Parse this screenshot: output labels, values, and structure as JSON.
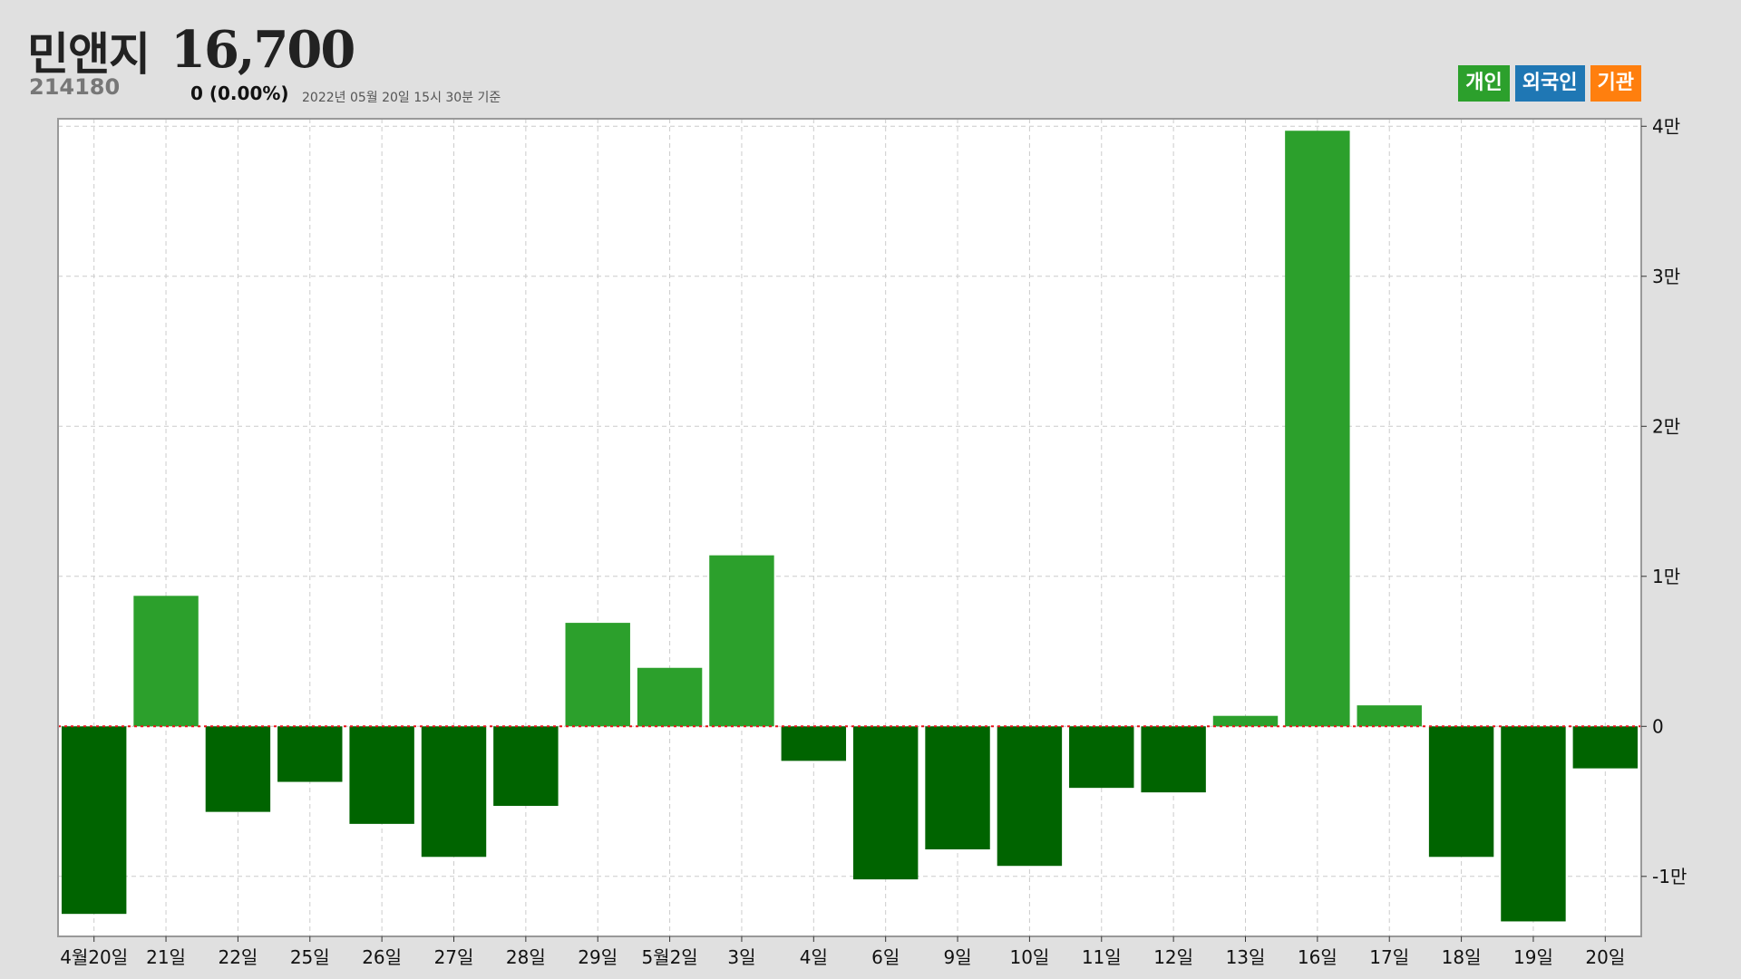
{
  "header": {
    "name": "민앤지",
    "price": "16,700",
    "code": "214180",
    "change": "0 (0.00%)",
    "timestamp": "2022년 05월 20일 15시 30분 기준"
  },
  "legend": [
    {
      "label": "개인",
      "color": "#2ca02c"
    },
    {
      "label": "외국인",
      "color": "#1f77b4"
    },
    {
      "label": "기관",
      "color": "#ff7f0e"
    }
  ],
  "chart_data": {
    "type": "bar",
    "title": "",
    "xlabel": "",
    "ylabel": "",
    "categories": [
      "4월20일",
      "21일",
      "22일",
      "25일",
      "26일",
      "27일",
      "28일",
      "29일",
      "5월2일",
      "3일",
      "4일",
      "6일",
      "9일",
      "10일",
      "11일",
      "12일",
      "13일",
      "16일",
      "17일",
      "18일",
      "19일",
      "20일"
    ],
    "series": [
      {
        "name": "개인",
        "values": [
          -12500,
          8700,
          -5700,
          -3700,
          -6500,
          -8700,
          -5300,
          6900,
          3900,
          11400,
          -2300,
          -10200,
          -8200,
          -9300,
          -4100,
          -4400,
          700,
          39700,
          1400,
          -8700,
          -13000,
          -2800
        ]
      }
    ],
    "ylim": [
      -14000,
      40500
    ],
    "yticks": [
      -10000,
      0,
      10000,
      20000,
      30000,
      40000
    ],
    "ytick_labels": [
      "-1만",
      "0",
      "1만",
      "2만",
      "3만",
      "4만"
    ],
    "grid": true,
    "legend_position": "top-right",
    "colors": {
      "positive": "#2ca02c",
      "negative": "#006400",
      "zero_line": "#e8141b",
      "grid": "#cccccc",
      "plot_bg": "#ffffff",
      "frame": "#999999"
    }
  }
}
